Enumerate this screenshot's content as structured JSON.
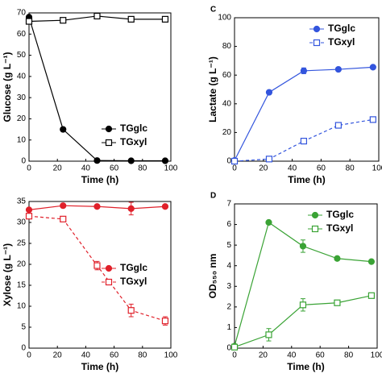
{
  "chart_data": [
    {
      "type": "line",
      "ylabel": "Glucose (g L⁻¹)",
      "xlabel": "Time (h)",
      "x": [
        0,
        24,
        48,
        72,
        96
      ],
      "xlim": [
        0,
        100
      ],
      "xticks": [
        0,
        20,
        40,
        60,
        80,
        100
      ],
      "ylim": [
        0,
        70
      ],
      "yticks": [
        0,
        10,
        20,
        30,
        40,
        50,
        60,
        70
      ],
      "legend": "lower right",
      "series": [
        {
          "name": "TGglc",
          "color": "#000000",
          "marker": "filled-circle",
          "line": "solid",
          "values": [
            68,
            15,
            0.3,
            0.2,
            0.2
          ]
        },
        {
          "name": "TGxyl",
          "color": "#000000",
          "marker": "open-square",
          "line": "solid",
          "values": [
            66,
            66.5,
            68.5,
            67,
            67
          ]
        }
      ]
    },
    {
      "type": "line",
      "label": "C",
      "ylabel": "Lactate (g L⁻¹)",
      "xlabel": "Time (h)",
      "x": [
        0,
        24,
        48,
        72,
        96
      ],
      "xlim": [
        0,
        100
      ],
      "xticks": [
        0,
        20,
        40,
        60,
        80,
        100
      ],
      "ylim": [
        0,
        100
      ],
      "yticks": [
        0,
        20,
        40,
        60,
        80,
        100
      ],
      "legend": "upper right",
      "series": [
        {
          "name": "TGglc",
          "color": "#3355dd",
          "marker": "filled-circle",
          "line": "solid",
          "values": [
            0.5,
            48,
            63,
            64,
            65.5
          ],
          "errors": [
            null,
            null,
            2,
            1,
            1
          ]
        },
        {
          "name": "TGxyl",
          "color": "#3355dd",
          "marker": "open-square",
          "line": "dashed",
          "values": [
            0,
            1.5,
            14,
            25,
            29
          ],
          "errors": [
            null,
            null,
            1,
            1,
            1
          ]
        }
      ]
    },
    {
      "type": "line",
      "ylabel": "Xylose (g L⁻¹)",
      "xlabel": "Time (h)",
      "x": [
        0,
        24,
        48,
        72,
        96
      ],
      "xlim": [
        0,
        100
      ],
      "xticks": [
        0,
        20,
        40,
        60,
        80,
        100
      ],
      "ylim": [
        0,
        35
      ],
      "yticks": [
        0,
        5,
        10,
        15,
        20,
        25,
        30,
        35
      ],
      "legend": "center right",
      "series": [
        {
          "name": "TGglc",
          "color": "#e0202a",
          "marker": "filled-circle",
          "line": "solid",
          "values": [
            33,
            34,
            33.8,
            33.3,
            33.8
          ],
          "errors": [
            null,
            null,
            null,
            1.5,
            null
          ]
        },
        {
          "name": "TGxyl",
          "color": "#e0202a",
          "marker": "open-square",
          "line": "dashed",
          "values": [
            31.5,
            30.8,
            19.7,
            9,
            6.5
          ],
          "errors": [
            null,
            null,
            1,
            1.5,
            1
          ]
        }
      ]
    },
    {
      "type": "line",
      "label": "D",
      "ylabel": "OD₅₅₀ nm",
      "xlabel": "Time (h)",
      "x": [
        0,
        24,
        48,
        72,
        96
      ],
      "xlim": [
        0,
        100
      ],
      "xticks": [
        0,
        20,
        40,
        60,
        80,
        100
      ],
      "ylim": [
        0,
        7
      ],
      "yticks": [
        0,
        1,
        2,
        3,
        4,
        5,
        6,
        7
      ],
      "legend": "upper right",
      "series": [
        {
          "name": "TGglc",
          "color": "#3aa335",
          "marker": "filled-circle",
          "line": "solid",
          "values": [
            0.1,
            6.1,
            4.95,
            4.35,
            4.2
          ],
          "errors": [
            null,
            null,
            0.3,
            null,
            null
          ]
        },
        {
          "name": "TGxyl",
          "color": "#3aa335",
          "marker": "open-square",
          "line": "solid",
          "values": [
            0.05,
            0.65,
            2.1,
            2.2,
            2.55
          ],
          "errors": [
            null,
            0.3,
            0.3,
            null,
            null
          ]
        }
      ]
    }
  ]
}
